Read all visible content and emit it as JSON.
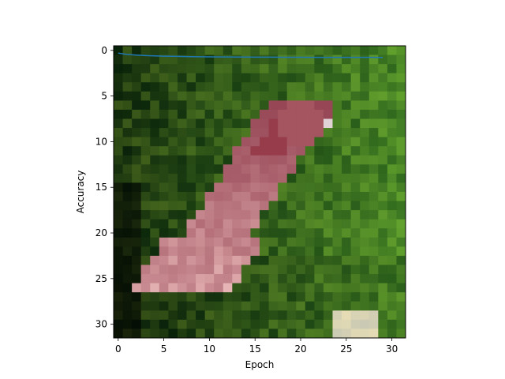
{
  "chart_data": {
    "type": "line",
    "background": "pixelated-image",
    "background_description": "",
    "xlabel": "Epoch",
    "ylabel": "Accuracy",
    "xlim": [
      -0.5,
      31.5
    ],
    "ylim": [
      31.5,
      -0.5
    ],
    "y_inverted": true,
    "x_ticks": [
      0,
      5,
      10,
      15,
      20,
      25,
      30
    ],
    "y_ticks": [
      0,
      5,
      10,
      15,
      20,
      25,
      30
    ],
    "grid": false,
    "series": [
      {
        "color": "#1f77b4",
        "x": [
          0,
          1,
          2,
          3,
          4,
          5,
          6,
          7,
          8,
          9,
          10,
          11,
          12,
          13,
          14,
          15,
          16,
          17,
          18,
          19,
          20,
          21,
          22,
          23,
          24,
          25,
          26,
          27,
          28,
          29
        ],
        "values": [
          0.3,
          0.45,
          0.52,
          0.57,
          0.6,
          0.63,
          0.65,
          0.67,
          0.69,
          0.7,
          0.71,
          0.72,
          0.72,
          0.73,
          0.73,
          0.74,
          0.74,
          0.74,
          0.75,
          0.75,
          0.75,
          0.76,
          0.76,
          0.76,
          0.76,
          0.77,
          0.77,
          0.77,
          0.77,
          0.78
        ]
      }
    ]
  },
  "colors": {
    "line": "#1f77b4",
    "foliage_dark": "#1f2a12",
    "foliage_mid": "#4f6a2c",
    "foliage_light": "#8ea84c",
    "bird_red": "#a04a5a",
    "bird_pink": "#d6a8ad",
    "bird_white": "#e6dcd0"
  }
}
